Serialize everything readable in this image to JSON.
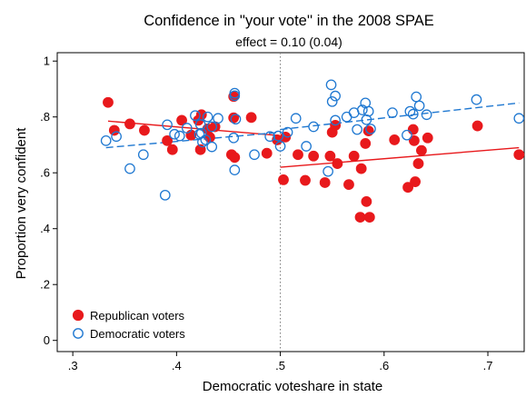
{
  "chart_data": {
    "type": "scatter",
    "title": "Confidence in ''your vote'' in the 2008 SPAE",
    "subtitle": "effect = 0.10 (0.04)",
    "xlabel": "Democratic voteshare in state",
    "ylabel": "Proportion very confident",
    "xlim": [
      0.3,
      0.73
    ],
    "ylim": [
      0,
      1
    ],
    "x_ticks": [
      0.3,
      0.4,
      0.5,
      0.6,
      0.7
    ],
    "x_tick_labels": [
      ".3",
      ".4",
      ".5",
      ".6",
      ".7"
    ],
    "y_ticks": [
      0,
      0.2,
      0.4,
      0.6,
      0.8,
      1
    ],
    "y_tick_labels": [
      "0",
      ".2",
      ".4",
      ".6",
      ".8",
      "1"
    ],
    "grid": false,
    "legend_position": "bottom-left",
    "threshold_x": 0.5,
    "series": [
      {
        "name": "Republican voters",
        "marker": "filled-circle",
        "color": "#e8191c",
        "points": [
          [
            0.334,
            0.852
          ],
          [
            0.34,
            0.752
          ],
          [
            0.355,
            0.775
          ],
          [
            0.369,
            0.752
          ],
          [
            0.391,
            0.715
          ],
          [
            0.396,
            0.683
          ],
          [
            0.405,
            0.788
          ],
          [
            0.414,
            0.735
          ],
          [
            0.421,
            0.788
          ],
          [
            0.423,
            0.683
          ],
          [
            0.424,
            0.808
          ],
          [
            0.43,
            0.757
          ],
          [
            0.432,
            0.727
          ],
          [
            0.437,
            0.765
          ],
          [
            0.453,
            0.665
          ],
          [
            0.455,
            0.873
          ],
          [
            0.455,
            0.797
          ],
          [
            0.456,
            0.655
          ],
          [
            0.472,
            0.798
          ],
          [
            0.487,
            0.67
          ],
          [
            0.497,
            0.718
          ],
          [
            0.503,
            0.575
          ],
          [
            0.505,
            0.728
          ],
          [
            0.517,
            0.665
          ],
          [
            0.524,
            0.573
          ],
          [
            0.532,
            0.66
          ],
          [
            0.543,
            0.565
          ],
          [
            0.548,
            0.66
          ],
          [
            0.55,
            0.745
          ],
          [
            0.553,
            0.77
          ],
          [
            0.555,
            0.633
          ],
          [
            0.566,
            0.558
          ],
          [
            0.571,
            0.66
          ],
          [
            0.577,
            0.441
          ],
          [
            0.578,
            0.615
          ],
          [
            0.582,
            0.705
          ],
          [
            0.583,
            0.497
          ],
          [
            0.585,
            0.75
          ],
          [
            0.586,
            0.441
          ],
          [
            0.61,
            0.718
          ],
          [
            0.623,
            0.548
          ],
          [
            0.628,
            0.755
          ],
          [
            0.629,
            0.715
          ],
          [
            0.63,
            0.568
          ],
          [
            0.633,
            0.633
          ],
          [
            0.636,
            0.68
          ],
          [
            0.642,
            0.725
          ],
          [
            0.69,
            0.768
          ],
          [
            0.73,
            0.665
          ]
        ],
        "fit_line": [
          [
            0.334,
            0.785
          ],
          [
            0.5,
            0.733
          ]
        ],
        "fit_line_right": [
          [
            0.5,
            0.62
          ],
          [
            0.73,
            0.69
          ]
        ]
      },
      {
        "name": "Democratic voters",
        "marker": "hollow-circle",
        "color": "#1f78d1",
        "points": [
          [
            0.332,
            0.715
          ],
          [
            0.342,
            0.73
          ],
          [
            0.355,
            0.615
          ],
          [
            0.368,
            0.665
          ],
          [
            0.389,
            0.52
          ],
          [
            0.391,
            0.772
          ],
          [
            0.398,
            0.738
          ],
          [
            0.403,
            0.732
          ],
          [
            0.41,
            0.76
          ],
          [
            0.418,
            0.805
          ],
          [
            0.422,
            0.738
          ],
          [
            0.423,
            0.773
          ],
          [
            0.424,
            0.742
          ],
          [
            0.425,
            0.71
          ],
          [
            0.428,
            0.718
          ],
          [
            0.43,
            0.8
          ],
          [
            0.434,
            0.765
          ],
          [
            0.434,
            0.693
          ],
          [
            0.44,
            0.795
          ],
          [
            0.455,
            0.725
          ],
          [
            0.456,
            0.885
          ],
          [
            0.456,
            0.876
          ],
          [
            0.456,
            0.61
          ],
          [
            0.457,
            0.792
          ],
          [
            0.475,
            0.665
          ],
          [
            0.49,
            0.73
          ],
          [
            0.498,
            0.732
          ],
          [
            0.5,
            0.695
          ],
          [
            0.507,
            0.745
          ],
          [
            0.515,
            0.795
          ],
          [
            0.525,
            0.695
          ],
          [
            0.532,
            0.765
          ],
          [
            0.546,
            0.605
          ],
          [
            0.549,
            0.915
          ],
          [
            0.55,
            0.855
          ],
          [
            0.553,
            0.788
          ],
          [
            0.553,
            0.875
          ],
          [
            0.564,
            0.8
          ],
          [
            0.571,
            0.815
          ],
          [
            0.574,
            0.755
          ],
          [
            0.579,
            0.825
          ],
          [
            0.582,
            0.85
          ],
          [
            0.583,
            0.79
          ],
          [
            0.585,
            0.82
          ],
          [
            0.587,
            0.757
          ],
          [
            0.608,
            0.815
          ],
          [
            0.622,
            0.735
          ],
          [
            0.625,
            0.82
          ],
          [
            0.628,
            0.81
          ],
          [
            0.631,
            0.872
          ],
          [
            0.634,
            0.84
          ],
          [
            0.641,
            0.808
          ],
          [
            0.689,
            0.862
          ],
          [
            0.73,
            0.795
          ]
        ],
        "fit_line": [
          [
            0.332,
            0.69
          ],
          [
            0.5,
            0.745
          ]
        ],
        "fit_line_right": [
          [
            0.5,
            0.755
          ],
          [
            0.73,
            0.85
          ]
        ]
      }
    ]
  }
}
